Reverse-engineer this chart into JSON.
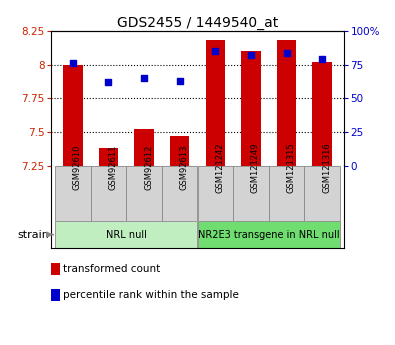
{
  "title": "GDS2455 / 1449540_at",
  "samples": [
    "GSM92610",
    "GSM92611",
    "GSM92612",
    "GSM92613",
    "GSM121242",
    "GSM121249",
    "GSM121315",
    "GSM121316"
  ],
  "red_values": [
    8.0,
    7.38,
    7.52,
    7.47,
    8.18,
    8.1,
    8.18,
    8.02
  ],
  "blue_values": [
    76,
    62,
    65,
    63,
    85,
    82,
    84,
    79
  ],
  "ylim_left": [
    7.25,
    8.25
  ],
  "ylim_right": [
    0,
    100
  ],
  "yticks_left": [
    7.25,
    7.5,
    7.75,
    8.0,
    8.25
  ],
  "yticks_right": [
    0,
    25,
    50,
    75,
    100
  ],
  "ytick_labels_left": [
    "7.25",
    "7.5",
    "7.75",
    "8",
    "8.25"
  ],
  "ytick_labels_right": [
    "0",
    "25",
    "50",
    "75",
    "100%"
  ],
  "groups": [
    {
      "label": "NRL null",
      "indices": [
        0,
        1,
        2,
        3
      ],
      "color": "#c0eec0"
    },
    {
      "label": "NR2E3 transgene in NRL null",
      "indices": [
        4,
        5,
        6,
        7
      ],
      "color": "#70dd70"
    }
  ],
  "bar_color": "#cc0000",
  "dot_color": "#0000cc",
  "bar_width": 0.55,
  "tick_color_left": "#cc2200",
  "tick_color_right": "#0000cc",
  "legend": [
    {
      "label": "transformed count",
      "color": "#cc0000"
    },
    {
      "label": "percentile rank within the sample",
      "color": "#0000cc"
    }
  ],
  "ybaseline": 7.25,
  "sample_cell_color": "#d3d3d3",
  "n_samples": 8
}
